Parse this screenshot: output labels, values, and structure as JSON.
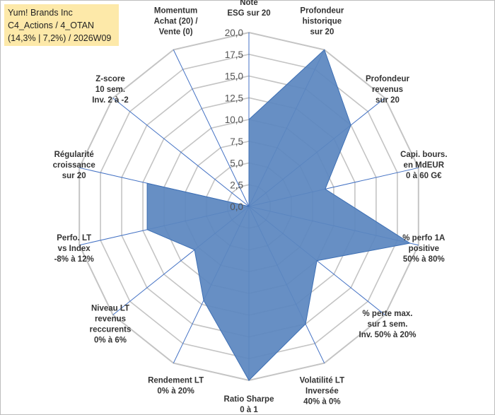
{
  "chart_data": {
    "type": "radar",
    "title_lines": [
      "Yum! Brands Inc",
      "C4_Actions / 4_OTAN",
      "(14,3% | 7,2%) / 2026W09"
    ],
    "rmin": 0,
    "rmax": 20,
    "tick_labels": [
      "0,0",
      "2,5",
      "5,0",
      "7,5",
      "10,0",
      "12,5",
      "15,0",
      "17,5",
      "20,0"
    ],
    "axes": [
      {
        "label": [
          "Note",
          "ESG sur 20"
        ],
        "value": 10.0
      },
      {
        "label": [
          "Profondeur",
          "historique",
          "sur 20"
        ],
        "value": 20.0
      },
      {
        "label": [
          "Profondeur",
          "revenus",
          "sur 20"
        ],
        "value": 15.0
      },
      {
        "label": [
          "Capi. bours.",
          "en MdEUR",
          "0 à 60 G€"
        ],
        "value": 9.0
      },
      {
        "label": [
          "% perfo 1A",
          "positive",
          "50% à 80%"
        ],
        "value": 19.0
      },
      {
        "label": [
          "% perte max.",
          "sur 1 sem.",
          "Inv. 50% à 20%"
        ],
        "value": 10.0
      },
      {
        "label": [
          "Volatilité LT",
          "Inversée",
          "40% à 0%"
        ],
        "value": 15.0
      },
      {
        "label": [
          "Ratio Sharpe",
          "0 à 1"
        ],
        "value": 20.0
      },
      {
        "label": [
          "Rendement LT",
          "0% à 20%"
        ],
        "value": 12.0
      },
      {
        "label": [
          "Niveau LT",
          "revenus",
          "reccurents",
          "0% à 6%"
        ],
        "value": 8.0
      },
      {
        "label": [
          "Perfo. LT",
          "vs Index",
          "-8% à 12%"
        ],
        "value": 12.0
      },
      {
        "label": [
          "Régularité",
          "croissance",
          "sur 20"
        ],
        "value": 12.0
      },
      {
        "label": [
          "Z-score",
          "10 sem.",
          "Inv. 2 à -2"
        ],
        "value": 0.0
      },
      {
        "label": [
          "Momentum",
          "Achat (20) /",
          "Vente (0)"
        ],
        "value": 0.0
      }
    ],
    "fill_color": "#5b86bf",
    "line_color": "#3d6fb4",
    "grid_color": "#c4c4c4",
    "spoke_color": "#4472c4"
  }
}
